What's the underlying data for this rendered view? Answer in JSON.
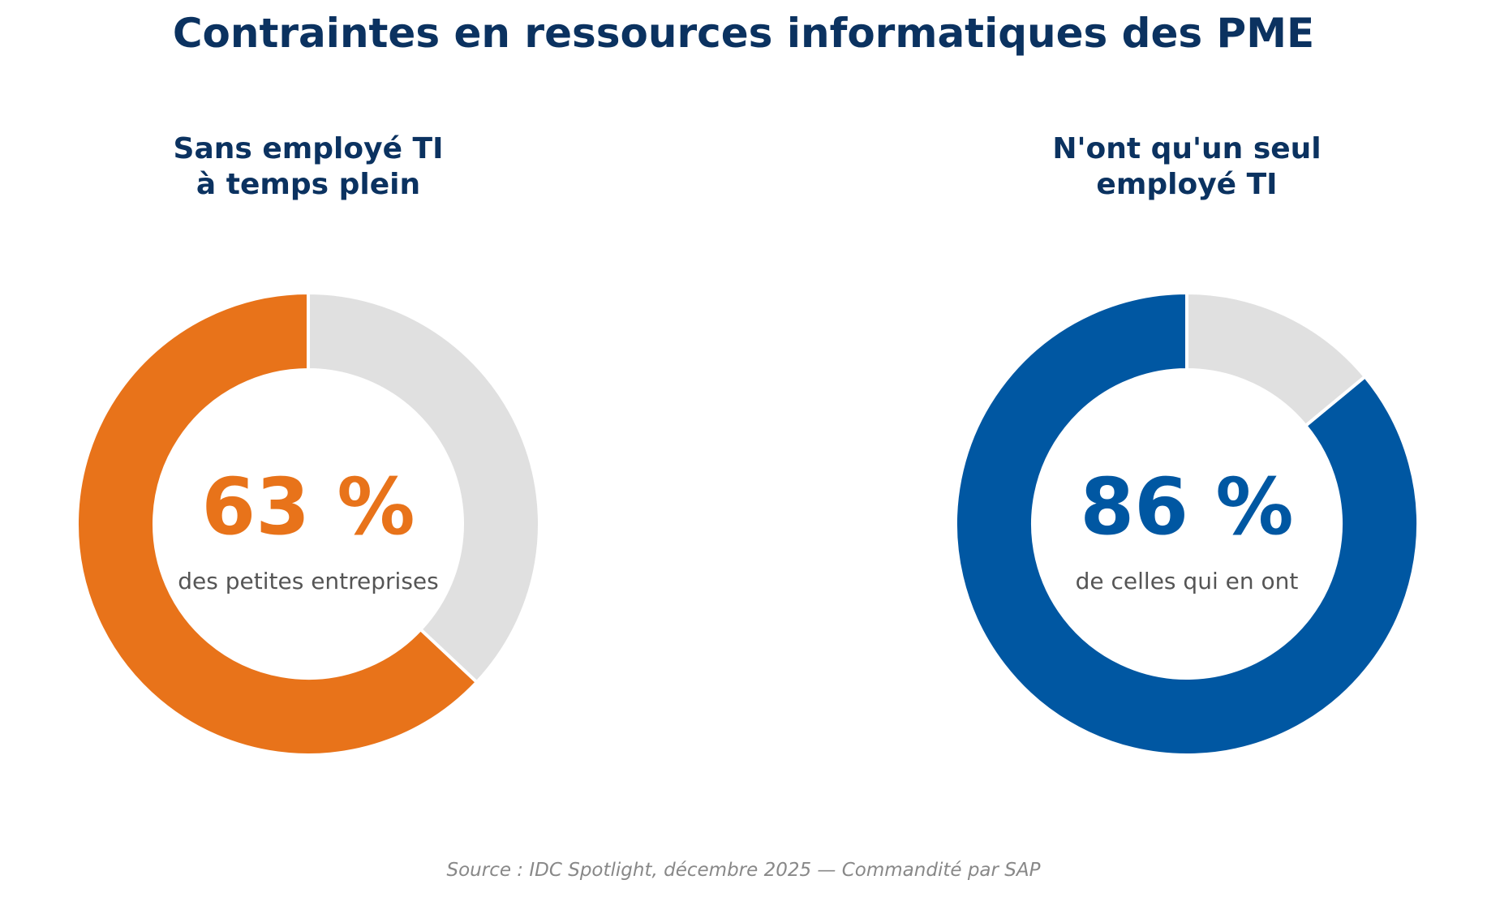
{
  "title": "Contraintes en ressources informatiques des PME",
  "source": "Source : IDC Spotlight, décembre 2025 — Commandité par SAP",
  "chart_data": [
    {
      "type": "pie",
      "subtitle_line1": "Sans employé TI",
      "subtitle_line2": "à temps plein",
      "value": 63,
      "remainder": 37,
      "value_label": "63 %",
      "caption": "des petites entreprises",
      "color": "#E8731A",
      "rest_color": "#E0E0E0"
    },
    {
      "type": "pie",
      "subtitle_line1": "N'ont qu'un seul",
      "subtitle_line2": "employé TI",
      "value": 86,
      "remainder": 14,
      "value_label": "86 %",
      "caption": "de celles qui en ont",
      "color": "#0057A2",
      "rest_color": "#E0E0E0"
    }
  ]
}
